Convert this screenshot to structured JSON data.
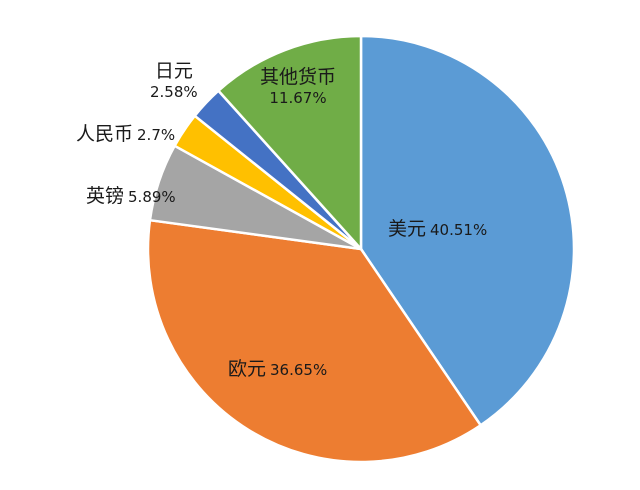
{
  "chart_data": {
    "type": "pie",
    "title": "",
    "slices": [
      {
        "label": "美元",
        "value": 40.51,
        "display": "40.51%",
        "color": "#5b9bd5"
      },
      {
        "label": "欧元",
        "value": 36.65,
        "display": "36.65%",
        "color": "#ed7d31"
      },
      {
        "label": "英镑",
        "value": 5.89,
        "display": "5.89%",
        "color": "#a5a5a5"
      },
      {
        "label": "人民币",
        "value": 2.7,
        "display": "2.7%",
        "color": "#ffc000"
      },
      {
        "label": "日元",
        "value": 2.58,
        "display": "2.58%",
        "color": "#4472c4"
      },
      {
        "label": "其他货币",
        "value": 11.67,
        "display": "11.67%",
        "color": "#70ad47"
      }
    ],
    "legend": "none",
    "start_angle": "top",
    "direction": "clockwise"
  }
}
